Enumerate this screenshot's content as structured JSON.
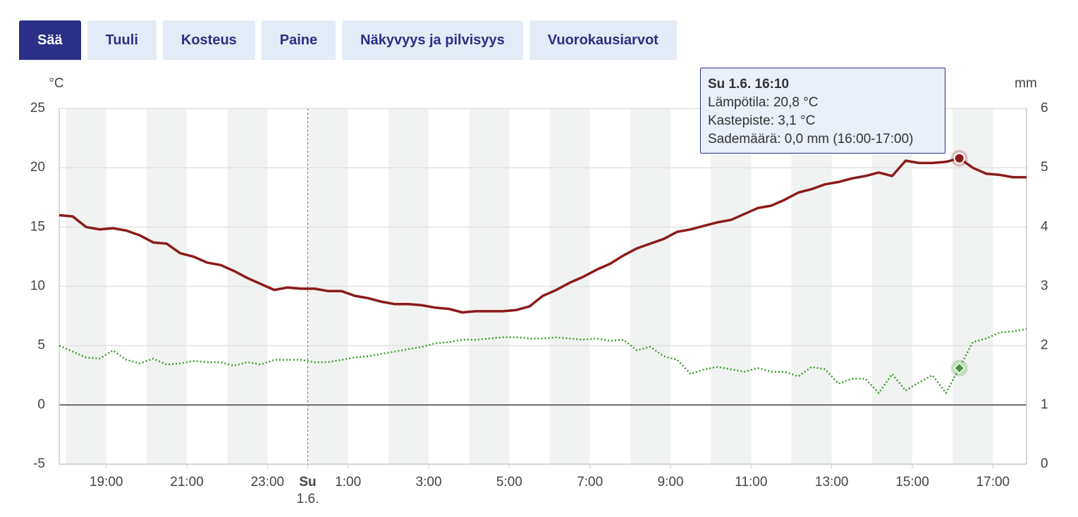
{
  "tabs": {
    "items": [
      "Sää",
      "Tuuli",
      "Kosteus",
      "Paine",
      "Näkyvyys ja pilvisyys",
      "Vuorokausiarvot"
    ],
    "active": 0
  },
  "chart_data": {
    "type": "line",
    "y_unit": "°C",
    "y2_unit": "mm",
    "xlim": [
      1070,
      2510
    ],
    "xticks": [
      {
        "value": 1140,
        "label": "19:00"
      },
      {
        "value": 1260,
        "label": "21:00"
      },
      {
        "value": 1380,
        "label": "23:00"
      },
      {
        "value": 1440,
        "label": "Su",
        "sublabel": "1.6."
      },
      {
        "value": 1500,
        "label": "1:00"
      },
      {
        "value": 1620,
        "label": "3:00"
      },
      {
        "value": 1740,
        "label": "5:00"
      },
      {
        "value": 1860,
        "label": "7:00"
      },
      {
        "value": 1980,
        "label": "9:00"
      },
      {
        "value": 2100,
        "label": "11:00"
      },
      {
        "value": 2220,
        "label": "13:00"
      },
      {
        "value": 2340,
        "label": "15:00"
      },
      {
        "value": 2460,
        "label": "17:00"
      }
    ],
    "ylim": [
      -5,
      25
    ],
    "yticks": [
      -5,
      0,
      5,
      10,
      15,
      20,
      25
    ],
    "y2lim": [
      0,
      6
    ],
    "y2ticks": [
      0,
      1,
      2,
      3,
      4,
      5,
      6
    ],
    "grid": true,
    "x": [
      1070,
      1090,
      1110,
      1130,
      1150,
      1170,
      1190,
      1210,
      1230,
      1250,
      1270,
      1290,
      1310,
      1330,
      1350,
      1370,
      1390,
      1410,
      1430,
      1450,
      1470,
      1490,
      1510,
      1530,
      1550,
      1570,
      1590,
      1610,
      1630,
      1650,
      1670,
      1690,
      1710,
      1730,
      1750,
      1770,
      1790,
      1810,
      1830,
      1850,
      1870,
      1890,
      1910,
      1930,
      1950,
      1970,
      1990,
      2010,
      2030,
      2050,
      2070,
      2090,
      2110,
      2130,
      2150,
      2170,
      2190,
      2210,
      2230,
      2250,
      2270,
      2290,
      2310,
      2330,
      2350,
      2370,
      2390,
      2410,
      2430,
      2450,
      2470,
      2490,
      2510
    ],
    "series": [
      {
        "name": "Lämpötila",
        "color": "#8b1a1a",
        "style": "solid",
        "values": [
          16.0,
          15.9,
          15.0,
          14.8,
          14.9,
          14.7,
          14.3,
          13.7,
          13.6,
          12.8,
          12.5,
          12.0,
          11.8,
          11.3,
          10.7,
          10.2,
          9.7,
          9.9,
          9.8,
          9.8,
          9.6,
          9.6,
          9.2,
          9.0,
          8.7,
          8.5,
          8.5,
          8.4,
          8.2,
          8.1,
          7.8,
          7.9,
          7.9,
          7.9,
          8.0,
          8.3,
          9.2,
          9.7,
          10.3,
          10.8,
          11.4,
          11.9,
          12.6,
          13.2,
          13.6,
          14.0,
          14.6,
          14.8,
          15.1,
          15.4,
          15.6,
          16.1,
          16.6,
          16.8,
          17.3,
          17.9,
          18.2,
          18.6,
          18.8,
          19.1,
          19.3,
          19.6,
          19.3,
          20.6,
          20.4,
          20.4,
          20.5,
          20.8,
          20.0,
          19.5,
          19.4,
          19.2,
          19.2
        ]
      },
      {
        "name": "Kastepiste",
        "color": "#3c9a2e",
        "style": "dotted",
        "values": [
          5.0,
          4.5,
          4.0,
          3.9,
          4.6,
          3.8,
          3.5,
          3.9,
          3.4,
          3.5,
          3.7,
          3.6,
          3.6,
          3.3,
          3.6,
          3.4,
          3.8,
          3.8,
          3.8,
          3.6,
          3.6,
          3.8,
          4.0,
          4.1,
          4.3,
          4.5,
          4.7,
          4.9,
          5.2,
          5.3,
          5.5,
          5.5,
          5.6,
          5.7,
          5.7,
          5.6,
          5.6,
          5.7,
          5.6,
          5.5,
          5.6,
          5.4,
          5.5,
          4.6,
          4.9,
          4.1,
          3.8,
          2.6,
          3.0,
          3.2,
          3.0,
          2.8,
          3.1,
          2.8,
          2.8,
          2.4,
          3.2,
          3.0,
          1.8,
          2.2,
          2.2,
          1.0,
          2.6,
          1.2,
          1.9,
          2.5,
          1.0,
          3.1,
          5.3,
          5.6,
          6.1,
          6.2,
          6.4
        ]
      }
    ],
    "highlight_index": 67,
    "tooltip": {
      "lines": [
        "Su 1.6. 16:10",
        "Lämpötila: 20,8 °C",
        "Kastepiste: 3,1 °C",
        "Sademäärä: 0,0 mm (16:00-17:00)"
      ]
    }
  }
}
